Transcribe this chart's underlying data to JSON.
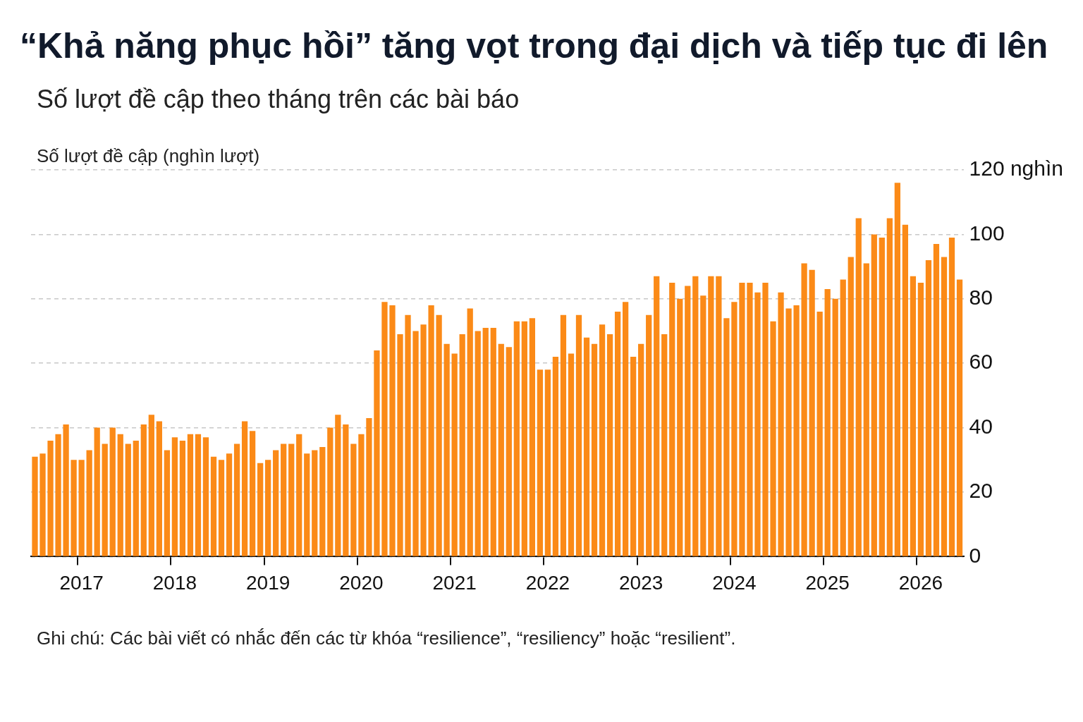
{
  "chart_data": {
    "type": "bar",
    "title": "“Khả năng phục hồi” tăng vọt trong đại dịch và tiếp tục đi lên",
    "subtitle": "Số lượt đề cập theo tháng trên các bài báo",
    "ylabel": "Số lượt đề cập (nghìn lượt)",
    "categories": [
      null,
      null,
      null,
      null,
      null,
      null,
      "2017",
      null,
      null,
      null,
      null,
      null,
      null,
      null,
      null,
      null,
      null,
      null,
      "2018",
      null,
      null,
      null,
      null,
      null,
      null,
      null,
      null,
      null,
      null,
      null,
      "2019",
      null,
      null,
      null,
      null,
      null,
      null,
      null,
      null,
      null,
      null,
      null,
      "2020",
      null,
      null,
      null,
      null,
      null,
      null,
      null,
      null,
      null,
      null,
      null,
      "2021",
      null,
      null,
      null,
      null,
      null,
      null,
      null,
      null,
      null,
      null,
      null,
      "2022",
      null,
      null,
      null,
      null,
      null,
      null,
      null,
      null,
      null,
      null,
      null,
      "2023",
      null,
      null,
      null,
      null,
      null,
      null,
      null,
      null,
      null,
      null,
      null,
      "2024",
      null,
      null,
      null,
      null,
      null,
      null,
      null,
      null,
      null,
      null,
      null,
      "2025",
      null,
      null,
      null,
      null,
      null,
      null,
      null,
      null,
      null,
      null,
      null,
      "2026",
      null,
      null,
      null,
      null,
      null
    ],
    "values": [
      31,
      32,
      36,
      38,
      41,
      30,
      30,
      33,
      40,
      35,
      40,
      38,
      35,
      36,
      41,
      44,
      42,
      33,
      37,
      36,
      38,
      38,
      37,
      31,
      30,
      32,
      35,
      42,
      39,
      29,
      30,
      33,
      35,
      35,
      38,
      32,
      33,
      34,
      40,
      44,
      41,
      35,
      38,
      43,
      64,
      79,
      78,
      69,
      75,
      70,
      72,
      78,
      75,
      66,
      63,
      69,
      77,
      70,
      71,
      71,
      66,
      65,
      73,
      73,
      74,
      58,
      58,
      62,
      75,
      63,
      75,
      68,
      66,
      72,
      69,
      76,
      79,
      62,
      66,
      75,
      87,
      69,
      85,
      80,
      84,
      87,
      81,
      87,
      87,
      74,
      79,
      85,
      85,
      82,
      85,
      73,
      82,
      77,
      78,
      91,
      89,
      76,
      83,
      80,
      86,
      93,
      105,
      91,
      100,
      99,
      105,
      116,
      103,
      87,
      85,
      92,
      97,
      93,
      99,
      86
    ],
    "color": "#fb8a17",
    "ylim": [
      0,
      120
    ],
    "yticks": [
      0,
      20,
      40,
      60,
      80,
      100,
      {
        "value": 120,
        "label": "120 nghìn"
      }
    ],
    "grid": "y",
    "annotations": [
      "Ghi chú: Các bài viết có nhắc đến các từ khóa “resilience”, “resiliency” hoặc “resilient”."
    ]
  }
}
